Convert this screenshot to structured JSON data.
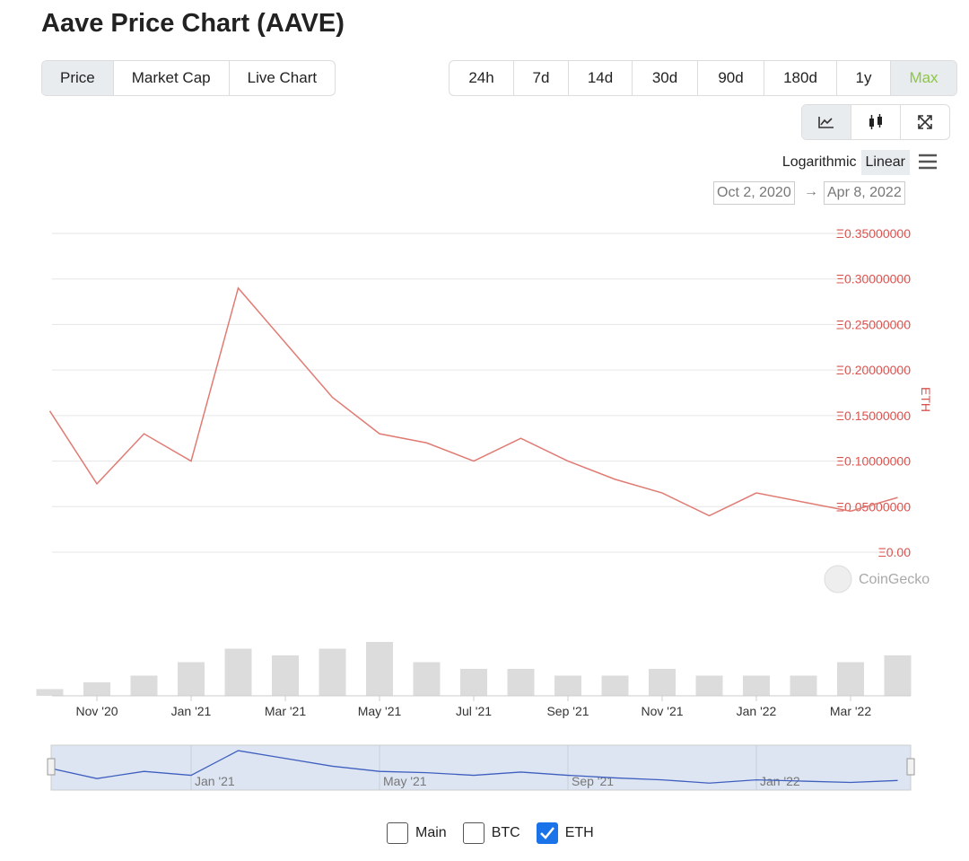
{
  "header": {
    "title": "Aave Price Chart (AAVE)"
  },
  "tabs": [
    {
      "label": "Price",
      "active": true
    },
    {
      "label": "Market Cap",
      "active": false
    },
    {
      "label": "Live Chart",
      "active": false
    }
  ],
  "ranges": {
    "labels": [
      "24h",
      "7d",
      "14d",
      "30d",
      "90d",
      "180d",
      "1y",
      "Max"
    ],
    "active": 7
  },
  "scale": {
    "options": [
      "Logarithmic",
      "Linear"
    ],
    "active": 1
  },
  "date_range": {
    "from": "Oct 2, 2020",
    "to": "Apr 8, 2022"
  },
  "watermark": "CoinGecko",
  "chart_data": {
    "type": "line",
    "y_label": "ETH",
    "color": "#e07b73",
    "navigator_color": "#3f5fbf",
    "x": [
      "2020-10",
      "2020-11",
      "2020-12",
      "2021-01",
      "2021-02",
      "2021-03",
      "2021-04",
      "2021-05",
      "2021-06",
      "2021-07",
      "2021-08",
      "2021-09",
      "2021-10",
      "2021-11",
      "2021-12",
      "2022-01",
      "2022-02",
      "2022-03",
      "2022-04"
    ],
    "values": [
      0.155,
      0.075,
      0.13,
      0.1,
      0.29,
      0.23,
      0.17,
      0.13,
      0.12,
      0.1,
      0.125,
      0.1,
      0.08,
      0.065,
      0.04,
      0.065,
      0.055,
      0.045,
      0.06
    ],
    "volume": [
      5,
      10,
      15,
      25,
      35,
      30,
      35,
      40,
      25,
      20,
      20,
      15,
      15,
      20,
      15,
      15,
      15,
      25,
      30
    ],
    "ylim": [
      0,
      0.35
    ],
    "yticks": [
      {
        "value": 0,
        "label": "Ξ0.00"
      },
      {
        "value": 0.05,
        "label": "Ξ0.05000000"
      },
      {
        "value": 0.1,
        "label": "Ξ0.10000000"
      },
      {
        "value": 0.15,
        "label": "Ξ0.15000000"
      },
      {
        "value": 0.2,
        "label": "Ξ0.20000000"
      },
      {
        "value": 0.25,
        "label": "Ξ0.25000000"
      },
      {
        "value": 0.3,
        "label": "Ξ0.30000000"
      },
      {
        "value": 0.35,
        "label": "Ξ0.35000000"
      }
    ],
    "xticks": [
      {
        "value": "2020-11",
        "label": "Nov '20"
      },
      {
        "value": "2021-01",
        "label": "Jan '21"
      },
      {
        "value": "2021-03",
        "label": "Mar '21"
      },
      {
        "value": "2021-05",
        "label": "May '21"
      },
      {
        "value": "2021-07",
        "label": "Jul '21"
      },
      {
        "value": "2021-09",
        "label": "Sep '21"
      },
      {
        "value": "2021-11",
        "label": "Nov '21"
      },
      {
        "value": "2022-01",
        "label": "Jan '22"
      },
      {
        "value": "2022-03",
        "label": "Mar '22"
      }
    ],
    "navigator_ticks": [
      1,
      3,
      5,
      7
    ],
    "grid": true
  },
  "checkboxes": [
    {
      "label": "Main",
      "checked": false
    },
    {
      "label": "BTC",
      "checked": false
    },
    {
      "label": "ETH",
      "checked": true
    }
  ]
}
